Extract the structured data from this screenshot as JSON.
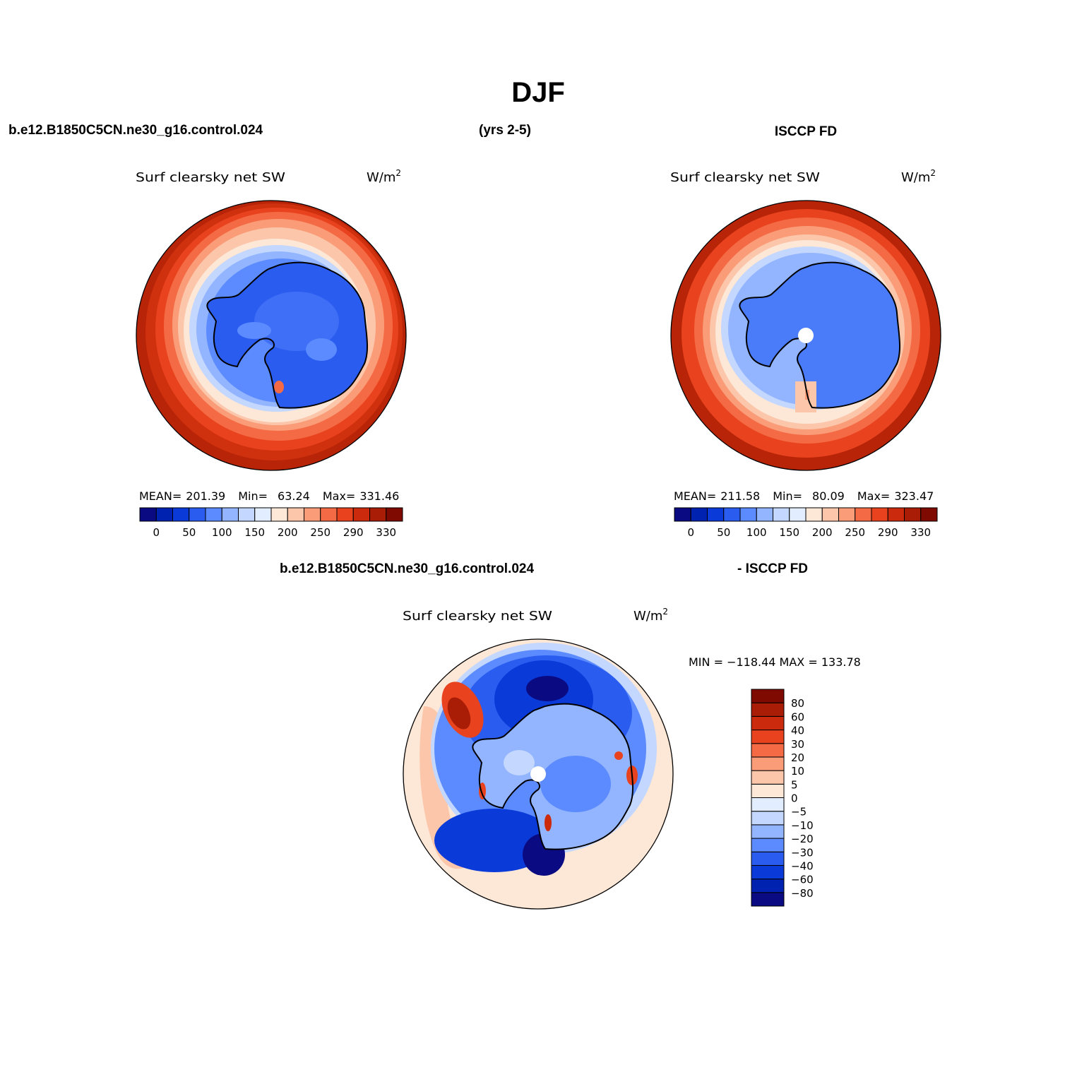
{
  "figure": {
    "title": "DJF",
    "case_name": "b.e12.B1850C5CN.ne30_g16.control.024",
    "years": "(yrs 2-5)",
    "obs_name": "ISCCP FD",
    "diff_case_name": "b.e12.B1850C5CN.ne30_g16.control.024",
    "diff_obs_name": "- ISCCP FD"
  },
  "panels": {
    "model": {
      "variable": "Surf clearsky net SW",
      "units": "W/m",
      "units_exp": "2",
      "stats": {
        "mean_label": "MEAN=",
        "mean": "201.39",
        "min_label": "Min=",
        "min": "63.24",
        "max_label": "Max=",
        "max": "331.46"
      }
    },
    "obs": {
      "variable": "Surf clearsky net SW",
      "units": "W/m",
      "units_exp": "2",
      "stats": {
        "mean_label": "MEAN=",
        "mean": "211.58",
        "min_label": "Min=",
        "min": "80.09",
        "max_label": "Max=",
        "max": "323.47"
      }
    },
    "diff": {
      "variable": "Surf clearsky net SW",
      "units": "W/m",
      "units_exp": "2",
      "minmax_text": "MIN = −118.44 MAX = 133.78"
    }
  },
  "colorbar_abs": {
    "colors": [
      "#0a0a82",
      "#0022b0",
      "#0a3ad8",
      "#2a5cf0",
      "#5b8bff",
      "#93b4ff",
      "#c3d7ff",
      "#e2eeff",
      "#fde7d6",
      "#fcc6ab",
      "#fa9c78",
      "#f46a44",
      "#e8431e",
      "#cc2a0c",
      "#a91c06",
      "#7e0a02"
    ],
    "tick_labels": [
      "0",
      "50",
      "100",
      "150",
      "200",
      "250",
      "290",
      "330"
    ]
  },
  "colorbar_diff": {
    "colors": [
      "#0a0a82",
      "#0022b0",
      "#0a3ad8",
      "#2a5cf0",
      "#5b8bff",
      "#93b4ff",
      "#c3d7ff",
      "#e2eeff",
      "#fde7d6",
      "#fcc6ab",
      "#fa9c78",
      "#f46a44",
      "#e8431e",
      "#cc2a0c",
      "#a91c06",
      "#7e0a02"
    ],
    "tick_labels": [
      "−80",
      "−60",
      "−40",
      "−30",
      "−20",
      "−10",
      "−5",
      "0",
      "5",
      "10",
      "20",
      "30",
      "40",
      "60",
      "80"
    ]
  }
}
